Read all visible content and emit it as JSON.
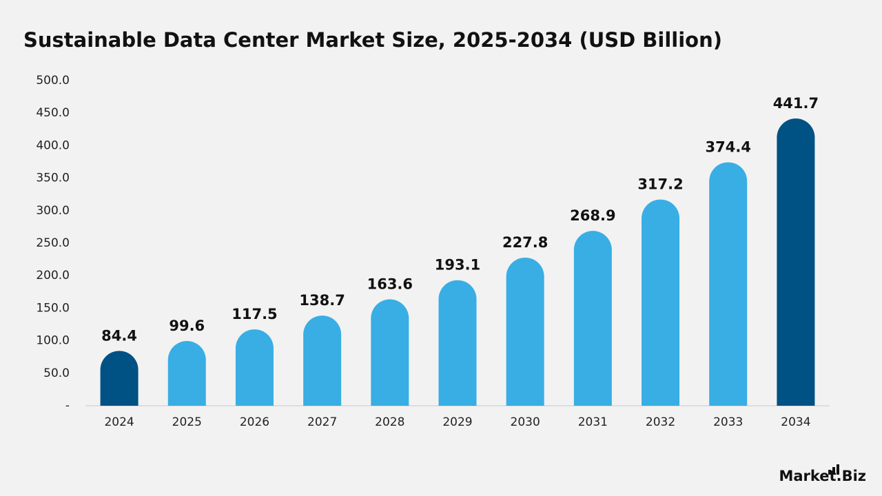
{
  "chart_data": {
    "type": "bar",
    "title": "Sustainable Data Center Market Size, 2025-2034 (USD Billion)",
    "categories": [
      "2024",
      "2025",
      "2026",
      "2027",
      "2028",
      "2029",
      "2030",
      "2031",
      "2032",
      "2033",
      "2034"
    ],
    "values": [
      84.4,
      99.6,
      117.5,
      138.7,
      163.6,
      193.1,
      227.8,
      268.9,
      317.2,
      374.4,
      441.7
    ],
    "colors": [
      "#005184",
      "#38aee4",
      "#38aee4",
      "#38aee4",
      "#38aee4",
      "#38aee4",
      "#38aee4",
      "#38aee4",
      "#38aee4",
      "#38aee4",
      "#005184"
    ],
    "ylim": [
      0,
      500
    ],
    "yticks": [
      {
        "value": 0,
        "label": "-"
      },
      {
        "value": 50,
        "label": "50.0"
      },
      {
        "value": 100,
        "label": "100.0"
      },
      {
        "value": 150,
        "label": "150.0"
      },
      {
        "value": 200,
        "label": "200.0"
      },
      {
        "value": 250,
        "label": "250.0"
      },
      {
        "value": 300,
        "label": "300.0"
      },
      {
        "value": 350,
        "label": "350.0"
      },
      {
        "value": 400,
        "label": "400.0"
      },
      {
        "value": 450,
        "label": "450.0"
      },
      {
        "value": 500,
        "label": "500.0"
      }
    ],
    "grid": false
  },
  "logo": "Market.Biz"
}
